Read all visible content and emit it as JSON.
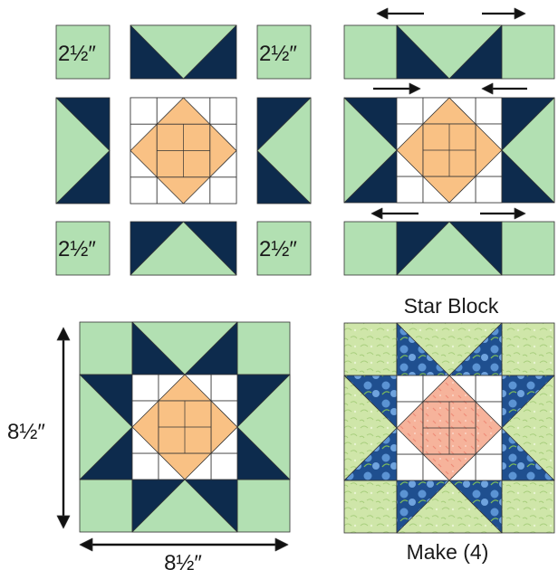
{
  "labels": {
    "square_size": "2½″",
    "block_title": "Star Block",
    "dimension_height": "8½″",
    "dimension_width": "8½″",
    "make_count": "Make (4)"
  },
  "colors": {
    "light_green": "#b2e0b2",
    "navy": "#0d2b4d",
    "peach": "#f9c184",
    "white": "#ffffff",
    "outline": "#333333",
    "print_green": "#cfe6a9",
    "print_blue": "#4f86c8",
    "print_peach": "#f6b39b"
  },
  "icons": {
    "arrow": "arrow-icon",
    "dimension_arrow": "double-arrow-icon"
  }
}
